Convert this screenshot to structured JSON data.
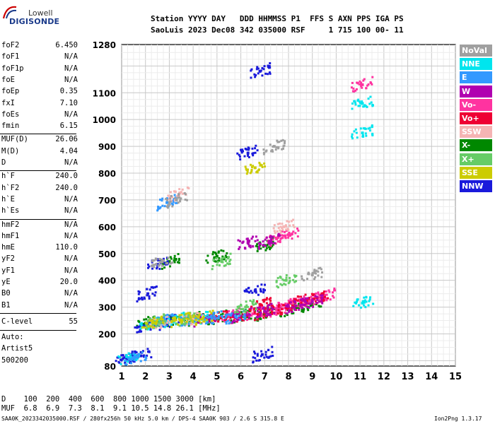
{
  "logo": {
    "top_text": "Lowell",
    "main_text": "DIGISONDE"
  },
  "header": {
    "line1": "Station YYYY DAY   DDD HHMMSS P1  FFS S AXN PPS IGA PS",
    "line2": "SaoLuis 2023 Dec08 342 035000 RSF     1 715 100 00- 11"
  },
  "params_group1": [
    {
      "label": "foF2",
      "value": "6.450"
    },
    {
      "label": "foF1",
      "value": "N/A"
    },
    {
      "label": "foF1p",
      "value": "N/A"
    },
    {
      "label": "foE",
      "value": "N/A"
    },
    {
      "label": "foEp",
      "value": "0.35"
    },
    {
      "label": "fxI",
      "value": "7.10"
    },
    {
      "label": "foEs",
      "value": "N/A"
    },
    {
      "label": "fmin",
      "value": "6.15"
    }
  ],
  "params_group2": [
    {
      "label": "MUF(D)",
      "value": "26.06"
    },
    {
      "label": "M(D)",
      "value": "4.04"
    },
    {
      "label": "D",
      "value": "N/A"
    }
  ],
  "params_group3": [
    {
      "label": "h`F",
      "value": "240.0"
    },
    {
      "label": "h`F2",
      "value": "240.0"
    },
    {
      "label": "h`E",
      "value": "N/A"
    },
    {
      "label": "h`Es",
      "value": "N/A"
    }
  ],
  "params_group4": [
    {
      "label": "hmF2",
      "value": "N/A"
    },
    {
      "label": "hmF1",
      "value": "N/A"
    },
    {
      "label": "hmE",
      "value": "110.0"
    },
    {
      "label": "yF2",
      "value": "N/A"
    },
    {
      "label": "yF1",
      "value": "N/A"
    },
    {
      "label": "yE",
      "value": "20.0"
    },
    {
      "label": "B0",
      "value": "N/A"
    },
    {
      "label": "B1",
      "value": "N/A"
    }
  ],
  "clevel": {
    "label": "C-level",
    "value": "55"
  },
  "autoscale": {
    "line1": "Auto:",
    "line2": "Artist5",
    "line3": "500200"
  },
  "legend": [
    {
      "name": "NoVal",
      "color": "#a0a0a0"
    },
    {
      "name": "NNE",
      "color": "#00e5ee"
    },
    {
      "name": "E",
      "color": "#3399ff"
    },
    {
      "name": "W",
      "color": "#b000b0"
    },
    {
      "name": "Vo-",
      "color": "#ff33a0"
    },
    {
      "name": "Vo+",
      "color": "#ee0033"
    },
    {
      "name": "SSW",
      "color": "#f5b4b4"
    },
    {
      "name": "X-",
      "color": "#008800"
    },
    {
      "name": "X+",
      "color": "#66cc66"
    },
    {
      "name": "SSE",
      "color": "#cccc00"
    },
    {
      "name": "NNW",
      "color": "#1a1adb"
    }
  ],
  "muf_table": {
    "line1": "D    100  200  400  600  800 1000 1500 3000 [km]",
    "line2": "MUF  6.8  6.9  7.3  8.1  9.1 10.5 14.8 26.1 [MHz]"
  },
  "footer": {
    "left": "SAA0K_2023342035000.RSF / 280fx256h 50 kHz 5.0 km / DPS-4 SAA0K 903 / 2.6 S 315.8 E",
    "right": "Ion2Png 1.3.17"
  },
  "chart_data": {
    "type": "scatter",
    "x_ticks": [
      "1",
      "2",
      "3",
      "4",
      "5",
      "6",
      "7",
      "8",
      "9",
      "10",
      "11",
      "12",
      "13",
      "14",
      "15"
    ],
    "y_ticks": [
      "80",
      "200",
      "300",
      "400",
      "500",
      "600",
      "700",
      "800",
      "900",
      "1000",
      "1100",
      "1280"
    ],
    "xlim": [
      1,
      15
    ],
    "ylim": [
      80,
      1280
    ],
    "grid": true,
    "series": [
      {
        "name": "X-",
        "color": "#008800",
        "points": [
          [
            2.0,
            240
          ],
          [
            3.0,
            250
          ],
          [
            4.0,
            255
          ],
          [
            5.0,
            260
          ],
          [
            6.0,
            265
          ],
          [
            7.0,
            275
          ],
          [
            8.0,
            290
          ],
          [
            9.0,
            310
          ],
          [
            3.0,
            470
          ],
          [
            5.0,
            490
          ],
          [
            7.0,
            530
          ]
        ]
      },
      {
        "name": "Vo-",
        "color": "#ff33a0",
        "points": [
          [
            5.5,
            265
          ],
          [
            6.5,
            275
          ],
          [
            7.5,
            290
          ],
          [
            8.0,
            310
          ],
          [
            8.5,
            320
          ],
          [
            9.0,
            330
          ],
          [
            9.5,
            340
          ],
          [
            8.0,
            570
          ],
          [
            7.5,
            555
          ],
          [
            11.1,
            1130
          ]
        ]
      },
      {
        "name": "Vo+",
        "color": "#ee0033",
        "points": [
          [
            5.0,
            262
          ],
          [
            6.0,
            268
          ],
          [
            7.0,
            280
          ],
          [
            8.0,
            300
          ],
          [
            8.6,
            325
          ],
          [
            9.2,
            335
          ],
          [
            6.8,
            310
          ]
        ]
      },
      {
        "name": "W",
        "color": "#b000b0",
        "points": [
          [
            4.5,
            258
          ],
          [
            6.0,
            270
          ],
          [
            7.0,
            285
          ],
          [
            8.3,
            305
          ],
          [
            9.0,
            320
          ],
          [
            6.3,
            540
          ],
          [
            7.2,
            545
          ]
        ]
      },
      {
        "name": "NNW",
        "color": "#1a1adb",
        "points": [
          [
            1.2,
            110
          ],
          [
            1.5,
            115
          ],
          [
            1.8,
            118
          ],
          [
            2.0,
            230
          ],
          [
            2.5,
            240
          ],
          [
            3.0,
            245
          ],
          [
            2.1,
            350
          ],
          [
            6.6,
            360
          ],
          [
            6.9,
            123
          ],
          [
            6.8,
            1180
          ],
          [
            6.3,
            875
          ],
          [
            2.5,
            460
          ]
        ]
      },
      {
        "name": "NNE",
        "color": "#00e5ee",
        "points": [
          [
            1.3,
            112
          ],
          [
            2.2,
            235
          ],
          [
            3.2,
            250
          ],
          [
            4.2,
            255
          ],
          [
            11.1,
            1060
          ],
          [
            11.1,
            950
          ],
          [
            11.1,
            315
          ]
        ]
      },
      {
        "name": "E",
        "color": "#3399ff",
        "points": [
          [
            1.6,
            113
          ],
          [
            2.8,
            248
          ],
          [
            3.8,
            253
          ],
          [
            4.8,
            258
          ],
          [
            5.8,
            264
          ],
          [
            2.9,
            690
          ]
        ]
      },
      {
        "name": "SSW",
        "color": "#f5b4b4",
        "points": [
          [
            2.6,
            240
          ],
          [
            4.0,
            256
          ],
          [
            7.8,
            600
          ],
          [
            3.4,
            720
          ]
        ]
      },
      {
        "name": "X+",
        "color": "#66cc66",
        "points": [
          [
            2.4,
            245
          ],
          [
            3.6,
            252
          ],
          [
            6.2,
            300
          ],
          [
            7.9,
            400
          ],
          [
            5.2,
            470
          ]
        ]
      },
      {
        "name": "SSE",
        "color": "#cccc00",
        "points": [
          [
            2.3,
            242
          ],
          [
            3.5,
            252
          ],
          [
            4.4,
            258
          ],
          [
            6.6,
            820
          ]
        ]
      },
      {
        "name": "NoVal",
        "color": "#a0a0a0",
        "points": [
          [
            2.7,
            470
          ],
          [
            3.3,
            700
          ],
          [
            7.4,
            900
          ],
          [
            9.0,
            420
          ]
        ]
      }
    ]
  }
}
